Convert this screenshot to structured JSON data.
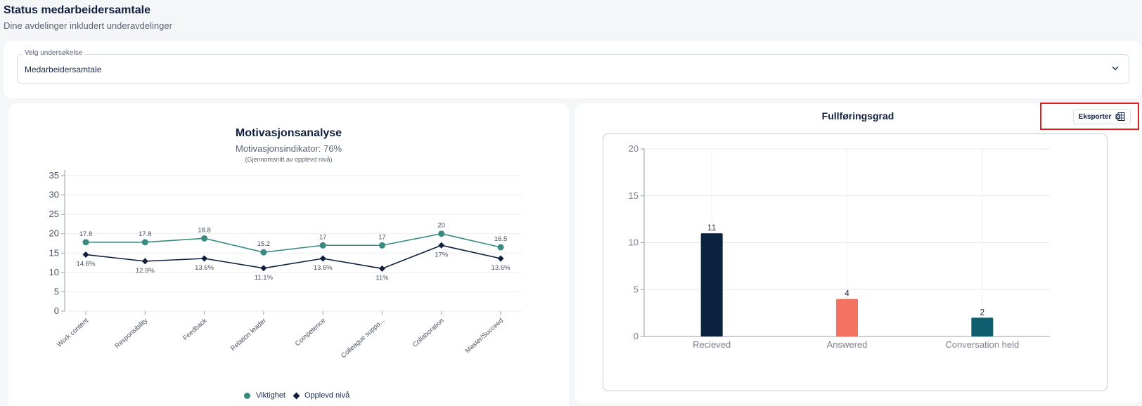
{
  "page": {
    "title": "Status medarbeidersamtale",
    "subtitle": "Dine avdelinger inkludert underavdelinger"
  },
  "survey_select": {
    "label": "Velg undersøkelse",
    "value": "Medarbeidersamtale",
    "icon": "chevron-down-icon"
  },
  "motivation": {
    "title": "Motivasjonsanalyse",
    "indicator": "Motivasjonsindikator: 76%",
    "note": "(Gjennomsnitt av opplevd nivå)",
    "legend": {
      "importance": "Viktighet",
      "perceived": "Opplevd nivå"
    }
  },
  "completion": {
    "title": "Fullføringsgrad",
    "export_label": "Eksporter",
    "export_icon": "excel-icon"
  },
  "colors": {
    "teal": "#3a8a82",
    "navy": "#0f1f3d",
    "bar_received": "#0c2340",
    "bar_answered": "#f47262",
    "bar_conversation": "#0e5f6e",
    "highlight": "#e01e1e"
  },
  "chart_data": [
    {
      "type": "line",
      "title": "Motivasjonsanalyse",
      "categories": [
        "Work content",
        "Responsibility",
        "Feedback",
        "Relation leader",
        "Competence",
        "Colleague suppo...",
        "Collaboration",
        "Master/Succeed"
      ],
      "ylim": [
        0,
        35
      ],
      "yticks": [
        0,
        5,
        10,
        15,
        20,
        25,
        30,
        35
      ],
      "grid": true,
      "legend_position": "bottom",
      "series": [
        {
          "name": "Viktighet",
          "values": [
            17.8,
            17.8,
            18.8,
            15.2,
            17,
            17,
            20,
            16.5
          ],
          "labels": [
            "17.8",
            "17.8",
            "18.8",
            "15.2",
            "17",
            "17",
            "20",
            "16.5"
          ]
        },
        {
          "name": "Opplevd nivå",
          "values": [
            14.6,
            12.9,
            13.6,
            11.1,
            13.6,
            11,
            17,
            13.6
          ],
          "labels": [
            "14.6%",
            "12.9%",
            "13.6%",
            "11.1%",
            "13.6%",
            "11%",
            "17%",
            "13.6%"
          ]
        }
      ]
    },
    {
      "type": "bar",
      "title": "Fullføringsgrad",
      "categories": [
        "Recieved",
        "Answered",
        "Conversation held"
      ],
      "values": [
        11,
        4,
        2
      ],
      "ylim": [
        0,
        20
      ],
      "yticks": [
        0,
        5,
        10,
        15,
        20
      ],
      "grid": true
    }
  ]
}
